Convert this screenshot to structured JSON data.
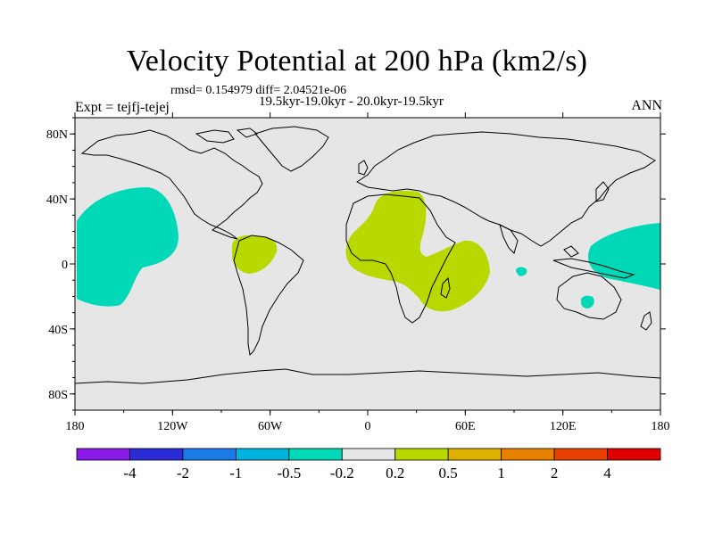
{
  "title": "Velocity Potential at 200 hPa (km2/s)",
  "stats": "rmsd= 0.154979 diff= 2.04521e-06",
  "period": "19.5kyr-19.0kyr - 20.0kyr-19.5kyr",
  "experiment": "Expt = tejfj-tejej",
  "season": "ANN",
  "map": {
    "projection": "cylindrical-equidistant",
    "lon_range": [
      -180,
      180
    ],
    "lat_range": [
      -90,
      90
    ],
    "lat_ticks": [
      {
        "value": 80,
        "label": "80N"
      },
      {
        "value": 40,
        "label": "40N"
      },
      {
        "value": 0,
        "label": "0"
      },
      {
        "value": -40,
        "label": "40S"
      },
      {
        "value": -80,
        "label": "80S"
      }
    ],
    "lon_ticks": [
      {
        "value": -180,
        "label": "180"
      },
      {
        "value": -120,
        "label": "120W"
      },
      {
        "value": -60,
        "label": "60W"
      },
      {
        "value": 0,
        "label": "0"
      },
      {
        "value": 60,
        "label": "60E"
      },
      {
        "value": 120,
        "label": "120E"
      },
      {
        "value": 180,
        "label": "180"
      }
    ],
    "background_color": "#e6e6e6",
    "regions": [
      {
        "name": "east-pacific-negative",
        "bin": "-0.5 to -0.2",
        "color": "#00d8b8"
      },
      {
        "name": "west-pacific-negative",
        "bin": "-0.5 to -0.2",
        "color": "#00d8b8"
      },
      {
        "name": "australia-negative",
        "bin": "-0.5 to -0.2",
        "color": "#00d8b8"
      },
      {
        "name": "indian-ocean-negative",
        "bin": "-0.5 to -0.2",
        "color": "#00d8b8"
      },
      {
        "name": "africa-positive",
        "bin": "0.2 to 0.5",
        "color": "#b8d800"
      },
      {
        "name": "south-america-positive",
        "bin": "0.2 to 0.5",
        "color": "#b8d800"
      }
    ]
  },
  "colorbar": {
    "colors": [
      "#8a1ae8",
      "#2b2bd8",
      "#1a7ae8",
      "#00b4e0",
      "#00d8b8",
      "#e6e6e6",
      "#b8d800",
      "#e0b000",
      "#e88000",
      "#e84000",
      "#e00000"
    ],
    "labels": [
      "-4",
      "-2",
      "-1",
      "-0.5",
      "-0.2",
      "0.2",
      "0.5",
      "1",
      "2",
      "4"
    ]
  }
}
